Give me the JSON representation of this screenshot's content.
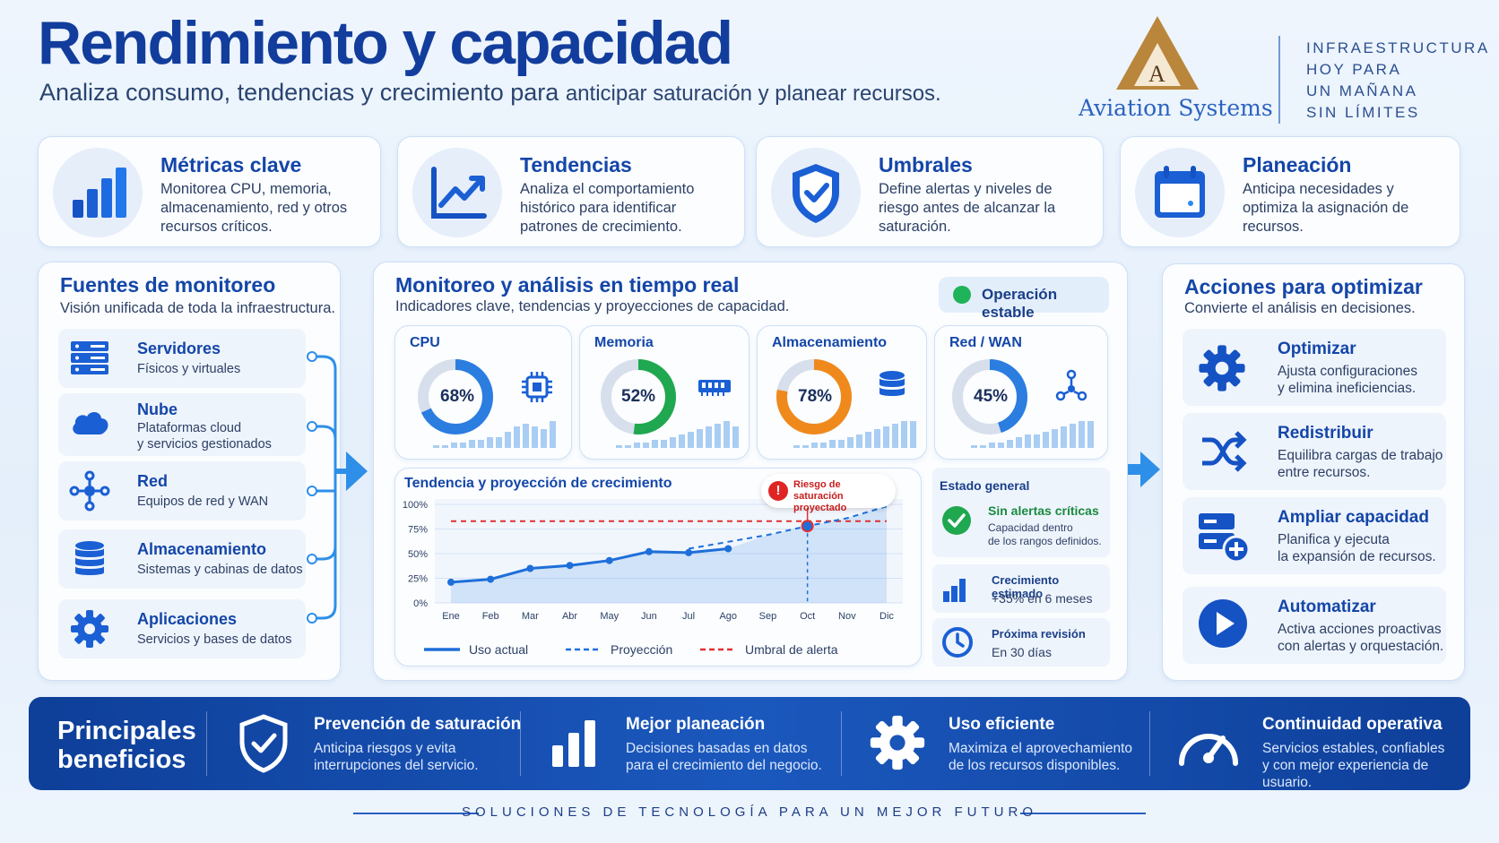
{
  "header": {
    "title": "Rendimiento y capacidad",
    "subtitle_a": "Analiza consumo, tendencias y crecimiento para",
    "subtitle_b": "anticipar saturación y planear recursos.",
    "logo_letter": "A",
    "logo_text": "Aviation Systems",
    "tagline": [
      "INFRAESTRUCTURA",
      "HOY PARA",
      "UN MAÑANA",
      "SIN LÍMITES"
    ]
  },
  "top_cards": [
    {
      "title": "Métricas clave",
      "text": "Monitorea CPU, memoria, almacenamiento, red y otros recursos críticos.",
      "icon": "bar-chart-icon"
    },
    {
      "title": "Tendencias",
      "text": "Analiza el comportamiento histórico para identificar patrones de crecimiento.",
      "icon": "trend-up-icon"
    },
    {
      "title": "Umbrales",
      "text": "Define alertas y niveles de riesgo antes de alcanzar la saturación.",
      "icon": "shield-check-icon"
    },
    {
      "title": "Planeación",
      "text": "Anticipa necesidades y optimiza la asignación de recursos.",
      "icon": "calendar-icon"
    }
  ],
  "sources": {
    "title": "Fuentes de monitoreo",
    "subtitle": "Visión unificada de toda la infraestructura.",
    "items": [
      {
        "title": "Servidores",
        "text": "Físicos y virtuales",
        "icon": "server-icon"
      },
      {
        "title": "Nube",
        "text": "Plataformas cloud\ny servicios gestionados",
        "icon": "cloud-icon"
      },
      {
        "title": "Red",
        "text": "Equipos de red y WAN",
        "icon": "network-icon"
      },
      {
        "title": "Almacenamiento",
        "text": "Sistemas y cabinas de datos",
        "icon": "database-icon"
      },
      {
        "title": "Aplicaciones",
        "text": "Servicios y bases de datos",
        "icon": "gear-icon"
      }
    ]
  },
  "monitor": {
    "title": "Monitoreo y análisis en tiempo real",
    "subtitle": "Indicadores clave, tendencias y proyecciones de capacidad.",
    "status_label": "Operación estable",
    "status_color": "#1fb35a",
    "gauges": [
      {
        "title": "CPU",
        "value": 68,
        "label": "68%",
        "color": "#2b7de0",
        "icon": "cpu-icon",
        "bars": [
          1,
          1,
          2,
          2,
          3,
          3,
          4,
          4,
          6,
          8,
          9,
          8,
          7,
          10
        ]
      },
      {
        "title": "Memoria",
        "value": 52,
        "label": "52%",
        "color": "#1fa84f",
        "icon": "memory-icon",
        "bars": [
          1,
          1,
          2,
          2,
          3,
          3,
          4,
          5,
          6,
          7,
          8,
          9,
          10,
          8
        ]
      },
      {
        "title": "Almacenamiento",
        "value": 78,
        "label": "78%",
        "color": "#f0891c",
        "icon": "database-icon",
        "bars": [
          1,
          1,
          2,
          2,
          3,
          3,
          4,
          5,
          6,
          7,
          8,
          9,
          10,
          10
        ]
      },
      {
        "title": "Red / WAN",
        "value": 45,
        "label": "45%",
        "color": "#2b7de0",
        "icon": "network-icon",
        "bars": [
          1,
          1,
          2,
          2,
          3,
          4,
          5,
          5,
          6,
          7,
          8,
          9,
          10,
          10
        ]
      }
    ]
  },
  "chart_data": {
    "type": "line",
    "title": "Tendencia y proyección de crecimiento",
    "categories": [
      "Ene",
      "Feb",
      "Mar",
      "Abr",
      "May",
      "Jun",
      "Jul",
      "Ago",
      "Sep",
      "Oct",
      "Nov",
      "Dic"
    ],
    "y_ticks": [
      "0%",
      "25%",
      "50%",
      "75%",
      "100%"
    ],
    "ylim": [
      0,
      100
    ],
    "series": [
      {
        "name": "Uso actual",
        "style": "solid",
        "color": "#1e6fd9",
        "values": [
          21,
          24,
          35,
          38,
          43,
          52,
          51,
          55,
          null,
          null,
          null,
          null
        ]
      },
      {
        "name": "Proyección",
        "style": "dashed",
        "color": "#1e6fd9",
        "values": [
          null,
          null,
          null,
          null,
          null,
          null,
          55,
          62,
          69,
          78,
          86,
          98
        ]
      },
      {
        "name": "Umbral de alerta",
        "style": "dashed",
        "color": "#e03030",
        "values": [
          83,
          83,
          83,
          83,
          83,
          83,
          83,
          83,
          83,
          83,
          83,
          83
        ]
      }
    ],
    "annotation": {
      "category": "Oct",
      "text": "Riesgo de saturación proyectado"
    },
    "legend_position": "bottom",
    "grid": true
  },
  "status": {
    "title": "Estado general",
    "alerts_title": "Sin alertas críticas",
    "alerts_text": "Capacidad dentro\nde los rangos definidos.",
    "growth_title": "Crecimiento estimado",
    "growth_text": "+35% en 6 meses",
    "review_title": "Próxima revisión",
    "review_text": "En 30 días"
  },
  "actions": {
    "title": "Acciones para optimizar",
    "subtitle": "Convierte el análisis en decisiones.",
    "items": [
      {
        "title": "Optimizar",
        "text": "Ajusta configuraciones\ny elimina ineficiencias.",
        "icon": "gear-icon"
      },
      {
        "title": "Redistribuir",
        "text": "Equilibra cargas de trabajo\nentre recursos.",
        "icon": "shuffle-icon"
      },
      {
        "title": "Ampliar capacidad",
        "text": "Planifica y ejecuta\nla expansión de recursos.",
        "icon": "add-server-icon"
      },
      {
        "title": "Automatizar",
        "text": "Activa acciones proactivas\ncon alertas y orquestación.",
        "icon": "play-icon"
      }
    ]
  },
  "benefits": {
    "lead": "Principales\nbeneficios",
    "items": [
      {
        "title": "Prevención de saturación",
        "text": "Anticipa riesgos y evita\ninterrupciones del servicio.",
        "icon": "shield-check-icon"
      },
      {
        "title": "Mejor planeación",
        "text": "Decisiones basadas en datos\npara el crecimiento del negocio.",
        "icon": "bar-chart-icon"
      },
      {
        "title": "Uso eficiente",
        "text": "Maximiza el aprovechamiento\nde los recursos disponibles.",
        "icon": "gear-icon"
      },
      {
        "title": "Continuidad operativa",
        "text": "Servicios estables, confiables\ny con mejor experiencia de usuario.",
        "icon": "gauge-icon"
      }
    ]
  },
  "footer": "SOLUCIONES DE TECNOLOGÍA PARA UN MEJOR FUTURO"
}
